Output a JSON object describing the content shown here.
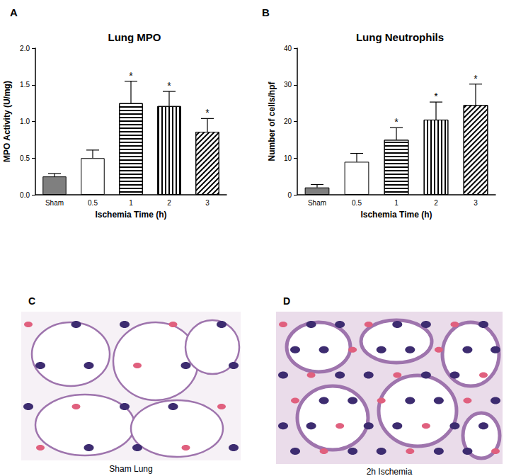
{
  "chart_data": [
    {
      "type": "bar",
      "panel": "A",
      "title": "Lung MPO",
      "xlabel": "Ischemia Time (h)",
      "ylabel": "MPO Activity (U/mg)",
      "categories": [
        "Sham",
        "0.5",
        "1",
        "2",
        "3"
      ],
      "values": [
        0.25,
        0.5,
        1.25,
        1.21,
        0.86
      ],
      "errors": [
        0.04,
        0.11,
        0.3,
        0.2,
        0.18
      ],
      "annotations": [
        null,
        null,
        "*",
        "*",
        "*"
      ],
      "colors": [
        "#7f7f7f",
        "#ffffff",
        "#ffffff",
        "#ffffff",
        "#ffffff"
      ],
      "ylim": [
        0,
        2.0
      ],
      "yticks": [
        {
          "value": 0,
          "label": "0.0"
        },
        0.5,
        {
          "value": 1,
          "label": "1.0"
        },
        1.5,
        {
          "value": 2,
          "label": "2.0"
        }
      ],
      "grid": false
    },
    {
      "type": "bar",
      "panel": "B",
      "title": "Lung Neutrophils",
      "xlabel": "Ischemia Time (h)",
      "ylabel": "Number of cells/hpf",
      "categories": [
        "Sham",
        "0.5",
        "1",
        "2",
        "3"
      ],
      "values": [
        2,
        9,
        15,
        20.5,
        24.5
      ],
      "errors": [
        0.8,
        2.3,
        3.3,
        4.8,
        5.7
      ],
      "annotations": [
        null,
        null,
        "*",
        "*",
        "*"
      ],
      "colors": [
        "#7f7f7f",
        "#ffffff",
        "#ffffff",
        "#ffffff",
        "#ffffff"
      ],
      "ylim": [
        0,
        40
      ],
      "yticks": [
        0,
        10,
        20,
        30,
        40
      ],
      "grid": false
    }
  ],
  "images": [
    {
      "panel": "C",
      "caption": "Sham Lung"
    },
    {
      "panel": "D",
      "caption": "2h Ischemia"
    }
  ]
}
